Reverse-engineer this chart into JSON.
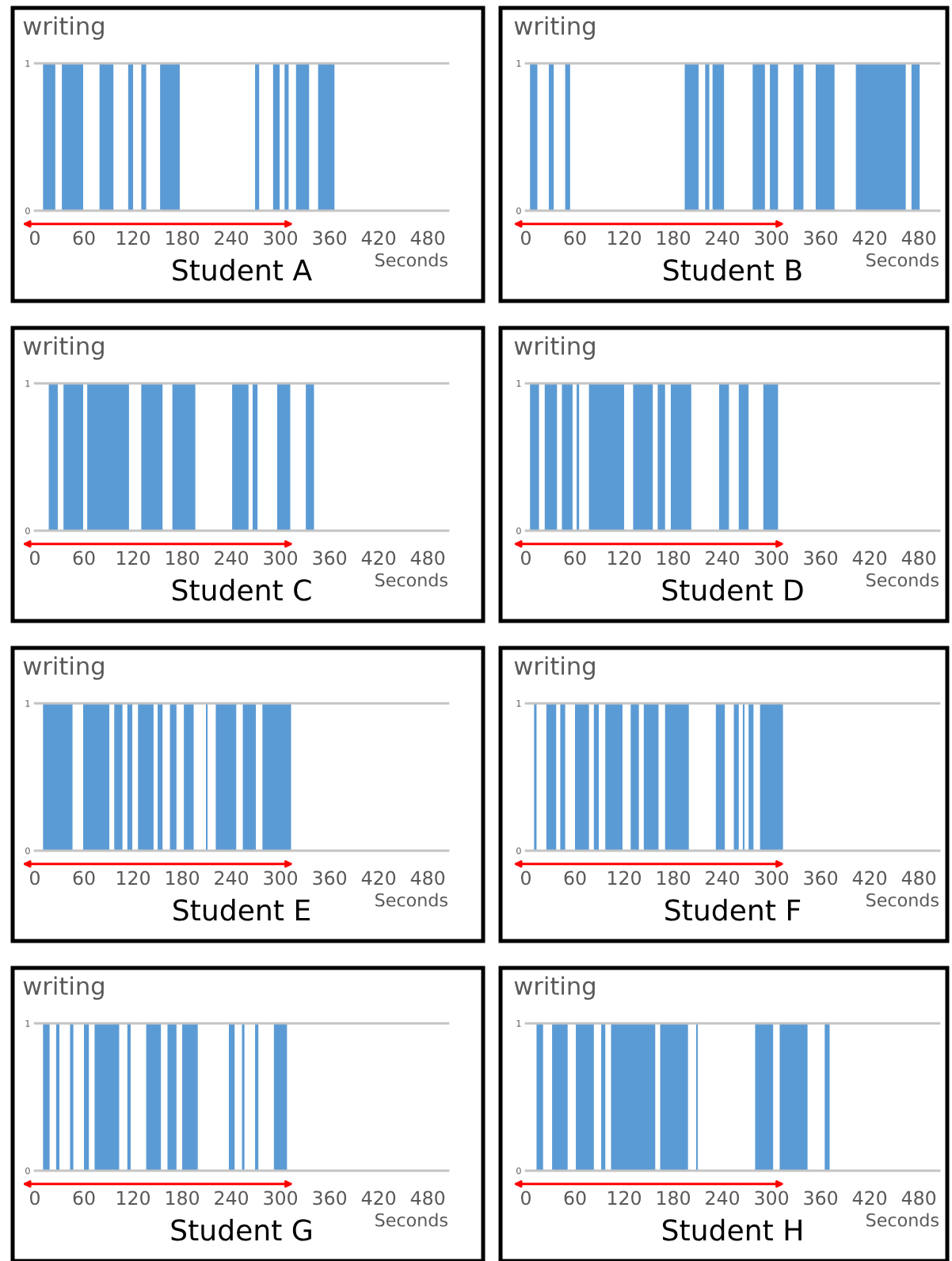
{
  "chart_data": [
    {
      "type": "area",
      "title": "Student A",
      "ylabel": "writing",
      "xlabel": "Seconds",
      "color": "#5b9bd5",
      "xlim": [
        0,
        505
      ],
      "ylim": [
        0,
        1
      ],
      "xticks": [
        0,
        60,
        120,
        180,
        240,
        300,
        360,
        420,
        480
      ],
      "yticks": [
        0,
        1
      ],
      "x": [
        10,
        10,
        25,
        25,
        33,
        33,
        59,
        59,
        79,
        79,
        96,
        96,
        114,
        114,
        120,
        120,
        130,
        130,
        136,
        136,
        153,
        153,
        177,
        177,
        269,
        269,
        274,
        274,
        291,
        291,
        299,
        299,
        305,
        305,
        310,
        310,
        319,
        319,
        335,
        335,
        346,
        346,
        366,
        366
      ],
      "values": [
        0,
        1,
        1,
        0,
        0,
        1,
        1,
        0,
        0,
        1,
        1,
        0,
        0,
        1,
        1,
        0,
        0,
        1,
        1,
        0,
        0,
        1,
        1,
        0,
        0,
        1,
        1,
        0,
        0,
        1,
        1,
        0,
        0,
        1,
        1,
        0,
        0,
        1,
        1,
        0,
        0,
        1,
        1,
        0
      ]
    },
    {
      "type": "area",
      "title": "Student B",
      "ylabel": "writing",
      "xlabel": "Seconds",
      "color": "#5b9bd5",
      "xlim": [
        0,
        505
      ],
      "ylim": [
        0,
        1
      ],
      "xticks": [
        0,
        60,
        120,
        180,
        240,
        300,
        360,
        420,
        480
      ],
      "yticks": [
        0,
        1
      ],
      "x": [
        5,
        5,
        14,
        14,
        28,
        28,
        34,
        34,
        48,
        48,
        54,
        54,
        194,
        194,
        211,
        211,
        219,
        219,
        224,
        224,
        228,
        228,
        242,
        242,
        277,
        277,
        292,
        292,
        298,
        298,
        308,
        308,
        327,
        327,
        339,
        339,
        354,
        354,
        377,
        377,
        403,
        403,
        464,
        464,
        471,
        471,
        481,
        481
      ],
      "values": [
        0,
        1,
        1,
        0,
        0,
        1,
        1,
        0,
        0,
        1,
        1,
        0,
        0,
        1,
        1,
        0,
        0,
        1,
        1,
        0,
        0,
        1,
        1,
        0,
        0,
        1,
        1,
        0,
        0,
        1,
        1,
        0,
        0,
        1,
        1,
        0,
        0,
        1,
        1,
        0,
        0,
        1,
        1,
        0,
        0,
        1,
        1,
        0
      ]
    },
    {
      "type": "area",
      "title": "Student C",
      "ylabel": "writing",
      "xlabel": "Seconds",
      "color": "#5b9bd5",
      "xlim": [
        0,
        505
      ],
      "ylim": [
        0,
        1
      ],
      "xticks": [
        0,
        60,
        120,
        180,
        240,
        300,
        360,
        420,
        480
      ],
      "yticks": [
        0,
        1
      ],
      "x": [
        17,
        17,
        28,
        28,
        35,
        35,
        59,
        59,
        64,
        64,
        115,
        115,
        130,
        130,
        156,
        156,
        168,
        168,
        196,
        196,
        241,
        241,
        261,
        261,
        266,
        266,
        272,
        272,
        296,
        296,
        312,
        312,
        331,
        331,
        341,
        341
      ],
      "values": [
        0,
        1,
        1,
        0,
        0,
        1,
        1,
        0,
        0,
        1,
        1,
        0,
        0,
        1,
        1,
        0,
        0,
        1,
        1,
        0,
        0,
        1,
        1,
        0,
        0,
        1,
        1,
        0,
        0,
        1,
        1,
        0,
        0,
        1,
        1,
        0
      ]
    },
    {
      "type": "area",
      "title": "Student D",
      "ylabel": "writing",
      "xlabel": "Seconds",
      "color": "#5b9bd5",
      "xlim": [
        0,
        505
      ],
      "ylim": [
        0,
        1
      ],
      "xticks": [
        0,
        60,
        120,
        180,
        240,
        300,
        360,
        420,
        480
      ],
      "yticks": [
        0,
        1
      ],
      "x": [
        5,
        5,
        16,
        16,
        23,
        23,
        38,
        38,
        44,
        44,
        57,
        57,
        62,
        62,
        65,
        65,
        77,
        77,
        120,
        120,
        131,
        131,
        155,
        155,
        161,
        161,
        170,
        170,
        177,
        177,
        202,
        202,
        236,
        236,
        248,
        248,
        260,
        260,
        272,
        272,
        290,
        290,
        308,
        308
      ],
      "values": [
        0,
        1,
        1,
        0,
        0,
        1,
        1,
        0,
        0,
        1,
        1,
        0,
        0,
        1,
        1,
        0,
        0,
        1,
        1,
        0,
        0,
        1,
        1,
        0,
        0,
        1,
        1,
        0,
        0,
        1,
        1,
        0,
        0,
        1,
        1,
        0,
        0,
        1,
        1,
        0,
        0,
        1,
        1,
        0
      ]
    },
    {
      "type": "area",
      "title": "Student E",
      "ylabel": "writing",
      "xlabel": "Seconds",
      "color": "#5b9bd5",
      "xlim": [
        0,
        505
      ],
      "ylim": [
        0,
        1
      ],
      "xticks": [
        0,
        60,
        120,
        180,
        240,
        300,
        360,
        420,
        480
      ],
      "yticks": [
        0,
        1
      ],
      "x": [
        10,
        10,
        46,
        46,
        59,
        59,
        91,
        91,
        97,
        97,
        107,
        107,
        113,
        113,
        119,
        119,
        126,
        126,
        145,
        145,
        150,
        150,
        156,
        156,
        165,
        165,
        173,
        173,
        182,
        182,
        194,
        194,
        209,
        209,
        211,
        211,
        221,
        221,
        246,
        246,
        254,
        254,
        270,
        270,
        278,
        278,
        313,
        313
      ],
      "values": [
        0,
        1,
        1,
        0,
        0,
        1,
        1,
        0,
        0,
        1,
        1,
        0,
        0,
        1,
        1,
        0,
        0,
        1,
        1,
        0,
        0,
        1,
        1,
        0,
        0,
        1,
        1,
        0,
        0,
        1,
        1,
        0,
        0,
        1,
        1,
        0,
        0,
        1,
        1,
        0,
        0,
        1,
        1,
        0,
        0,
        1,
        1,
        0
      ]
    },
    {
      "type": "area",
      "title": "Student F",
      "ylabel": "writing",
      "xlabel": "Seconds",
      "color": "#5b9bd5",
      "xlim": [
        0,
        505
      ],
      "ylim": [
        0,
        1
      ],
      "xticks": [
        0,
        60,
        120,
        180,
        240,
        300,
        360,
        420,
        480
      ],
      "yticks": [
        0,
        1
      ],
      "x": [
        10,
        10,
        13,
        13,
        25,
        25,
        37,
        37,
        42,
        42,
        48,
        48,
        60,
        60,
        77,
        77,
        83,
        83,
        89,
        89,
        97,
        97,
        118,
        118,
        128,
        128,
        138,
        138,
        144,
        144,
        162,
        162,
        170,
        170,
        199,
        199,
        232,
        232,
        243,
        243,
        254,
        254,
        260,
        260,
        265,
        265,
        267,
        267,
        272,
        272,
        278,
        278,
        286,
        286,
        314,
        314
      ],
      "values": [
        0,
        1,
        1,
        0,
        0,
        1,
        1,
        0,
        0,
        1,
        1,
        0,
        0,
        1,
        1,
        0,
        0,
        1,
        1,
        0,
        0,
        1,
        1,
        0,
        0,
        1,
        1,
        0,
        0,
        1,
        1,
        0,
        0,
        1,
        1,
        0,
        0,
        1,
        1,
        0,
        0,
        1,
        1,
        0,
        0,
        1,
        1,
        0,
        0,
        1,
        1,
        0,
        0,
        1,
        1,
        0
      ]
    },
    {
      "type": "area",
      "title": "Student G",
      "ylabel": "writing",
      "xlabel": "Seconds",
      "color": "#5b9bd5",
      "xlim": [
        0,
        505
      ],
      "ylim": [
        0,
        1
      ],
      "xticks": [
        0,
        60,
        120,
        180,
        240,
        300,
        360,
        420,
        480
      ],
      "yticks": [
        0,
        1
      ],
      "x": [
        10,
        10,
        18,
        18,
        26,
        26,
        30,
        30,
        43,
        43,
        47,
        47,
        60,
        60,
        66,
        66,
        73,
        73,
        103,
        103,
        113,
        113,
        117,
        117,
        136,
        136,
        154,
        154,
        162,
        162,
        173,
        173,
        180,
        180,
        199,
        199,
        237,
        237,
        244,
        244,
        253,
        253,
        256,
        256,
        269,
        269,
        273,
        273,
        292,
        292,
        308,
        308
      ],
      "values": [
        0,
        1,
        1,
        0,
        0,
        1,
        1,
        0,
        0,
        1,
        1,
        0,
        0,
        1,
        1,
        0,
        0,
        1,
        1,
        0,
        0,
        1,
        1,
        0,
        0,
        1,
        1,
        0,
        0,
        1,
        1,
        0,
        0,
        1,
        1,
        0,
        0,
        1,
        1,
        0,
        0,
        1,
        1,
        0,
        0,
        1,
        1,
        0,
        0,
        1,
        1,
        0
      ]
    },
    {
      "type": "area",
      "title": "Student H",
      "ylabel": "writing",
      "xlabel": "Seconds",
      "color": "#5b9bd5",
      "xlim": [
        0,
        505
      ],
      "ylim": [
        0,
        1
      ],
      "xticks": [
        0,
        60,
        120,
        180,
        240,
        300,
        360,
        420,
        480
      ],
      "yticks": [
        0,
        1
      ],
      "x": [
        13,
        13,
        21,
        21,
        32,
        32,
        51,
        51,
        61,
        61,
        83,
        83,
        92,
        92,
        97,
        97,
        104,
        104,
        158,
        158,
        164,
        164,
        198,
        198,
        208,
        208,
        210,
        210,
        280,
        280,
        302,
        302,
        310,
        310,
        344,
        344,
        365,
        365,
        371,
        371
      ],
      "values": [
        0,
        1,
        1,
        0,
        0,
        1,
        1,
        0,
        0,
        1,
        1,
        0,
        0,
        1,
        1,
        0,
        0,
        1,
        1,
        0,
        0,
        1,
        1,
        0,
        0,
        1,
        1,
        0,
        0,
        1,
        1,
        0,
        0,
        1,
        1,
        0,
        0,
        1,
        1,
        0
      ]
    }
  ]
}
